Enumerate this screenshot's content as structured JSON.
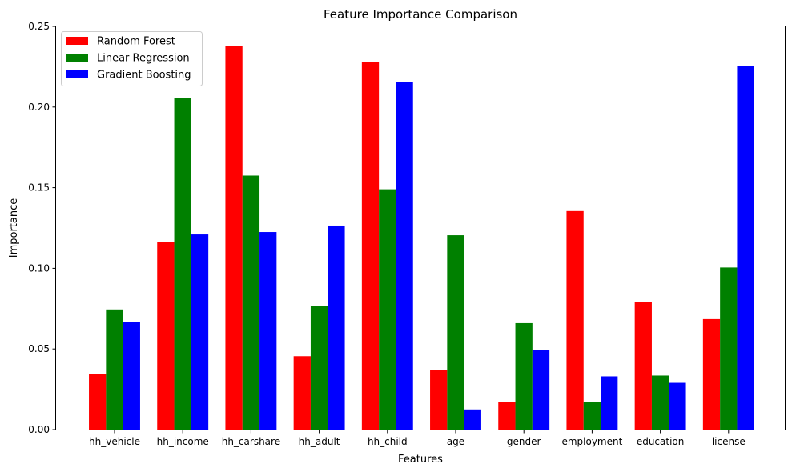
{
  "chart_data": {
    "type": "bar",
    "title": "Feature Importance Comparison",
    "xlabel": "Features",
    "ylabel": "Importance",
    "ylim": [
      0,
      0.25
    ],
    "yticks": [
      "0.00",
      "0.05",
      "0.10",
      "0.15",
      "0.20",
      "0.25"
    ],
    "categories": [
      "hh_vehicle",
      "hh_income",
      "hh_carshare",
      "hh_adult",
      "hh_child",
      "age",
      "gender",
      "employment",
      "education",
      "license"
    ],
    "series": [
      {
        "name": "Random Forest",
        "color": "#ff0000",
        "values": [
          0.0345,
          0.1165,
          0.238,
          0.0455,
          0.228,
          0.037,
          0.017,
          0.1355,
          0.079,
          0.0685
        ]
      },
      {
        "name": "Linear Regression",
        "color": "#008000",
        "values": [
          0.0745,
          0.2055,
          0.1575,
          0.0765,
          0.149,
          0.1205,
          0.066,
          0.017,
          0.0335,
          0.1005
        ]
      },
      {
        "name": "Gradient Boosting",
        "color": "#0000ff",
        "values": [
          0.0665,
          0.121,
          0.1225,
          0.1265,
          0.2155,
          0.0125,
          0.0495,
          0.033,
          0.029,
          0.2255
        ]
      }
    ],
    "legend_position": "upper left",
    "grid": false
  }
}
